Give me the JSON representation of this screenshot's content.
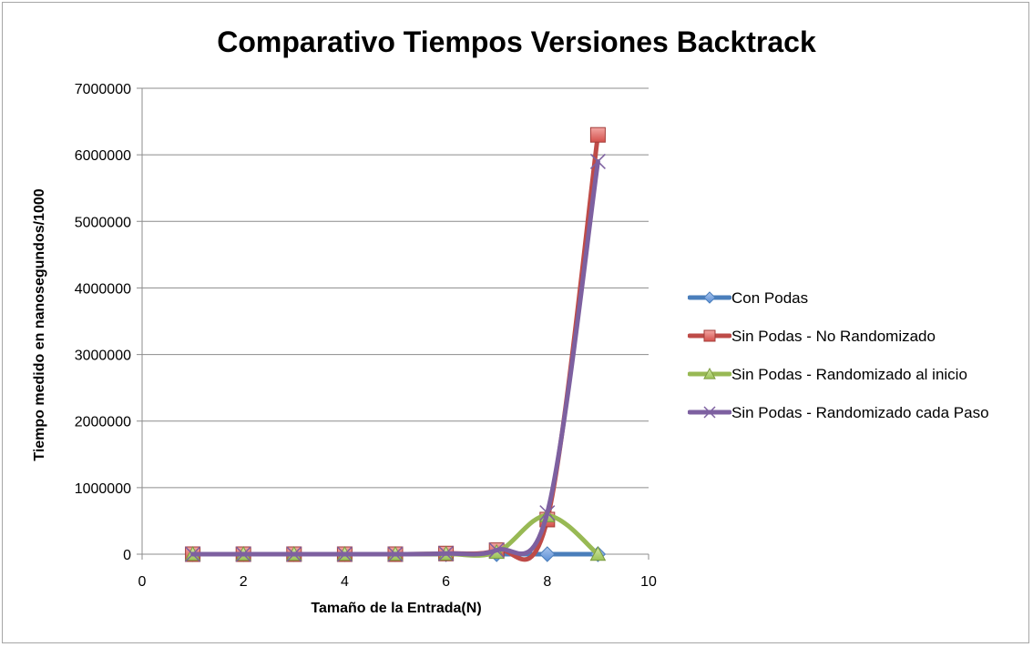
{
  "chart_data": {
    "type": "line",
    "title": "Comparativo Tiempos Versiones Backtrack",
    "xlabel": "Tamaño de la Entrada(N)",
    "ylabel": "Tiempo medido en nanosegundos/1000",
    "xlim": [
      0,
      10
    ],
    "ylim": [
      0,
      7000000
    ],
    "xticks": [
      "0",
      "2",
      "4",
      "6",
      "8",
      "10"
    ],
    "yticks": [
      "0",
      "1000000",
      "2000000",
      "3000000",
      "4000000",
      "5000000",
      "6000000",
      "7000000"
    ],
    "grid": "horizontal",
    "legend_position": "right",
    "series": [
      {
        "name": "Con Podas",
        "color": "#4a7ebb",
        "marker": "diamond",
        "x": [
          1,
          2,
          3,
          4,
          5,
          6,
          7,
          8,
          9
        ],
        "y": [
          0,
          0,
          0,
          0,
          0,
          0,
          0,
          0,
          0
        ]
      },
      {
        "name": "Sin Podas - No Randomizado",
        "color": "#be4b48",
        "marker": "square",
        "x": [
          1,
          2,
          3,
          4,
          5,
          6,
          7,
          8,
          9
        ],
        "y": [
          0,
          0,
          0,
          0,
          0,
          10000,
          60000,
          520000,
          6300000
        ]
      },
      {
        "name": "Sin Podas - Randomizado al inicio",
        "color": "#98b954",
        "marker": "triangle",
        "x": [
          1,
          2,
          3,
          4,
          5,
          6,
          7,
          8,
          9
        ],
        "y": [
          0,
          0,
          0,
          0,
          0,
          5000,
          30000,
          580000,
          0
        ]
      },
      {
        "name": "Sin Podas - Randomizado cada Paso",
        "color": "#7d60a0",
        "marker": "x",
        "x": [
          1,
          2,
          3,
          4,
          5,
          6,
          7,
          8,
          9
        ],
        "y": [
          0,
          0,
          0,
          0,
          0,
          10000,
          60000,
          620000,
          5900000
        ]
      }
    ]
  }
}
